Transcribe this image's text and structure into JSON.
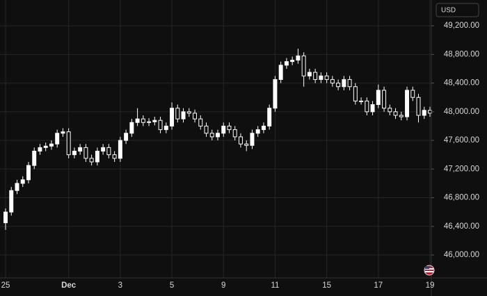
{
  "chart_data": {
    "type": "candlestick",
    "currency": "USD",
    "color": "#ffffff",
    "grid": true,
    "categories": [
      "25",
      null,
      null,
      null,
      null,
      null,
      null,
      null,
      null,
      null,
      null,
      "Dec",
      null,
      null,
      null,
      null,
      null,
      null,
      null,
      null,
      "3",
      null,
      null,
      null,
      null,
      null,
      null,
      null,
      null,
      "5",
      null,
      null,
      null,
      null,
      null,
      null,
      null,
      null,
      "9",
      null,
      null,
      null,
      null,
      null,
      null,
      null,
      null,
      "11",
      null,
      null,
      null,
      null,
      null,
      null,
      null,
      null,
      "15",
      null,
      null,
      null,
      null,
      null,
      null,
      null,
      null,
      "17",
      null,
      null,
      null,
      null,
      null,
      null,
      null,
      null,
      "19"
    ],
    "open": [
      46450,
      46600,
      46900,
      47000,
      47050,
      47250,
      47450,
      47500,
      47520,
      47550,
      47700,
      47720,
      47400,
      47450,
      47500,
      47350,
      47300,
      47450,
      47500,
      47400,
      47350,
      47600,
      47700,
      47850,
      47900,
      47850,
      47860,
      47880,
      47750,
      47800,
      48050,
      47900,
      48000,
      47980,
      47900,
      47800,
      47700,
      47650,
      47700,
      47800,
      47750,
      47650,
      47550,
      47530,
      47700,
      47750,
      47800,
      48050,
      48450,
      48650,
      48700,
      48720,
      48780,
      48500,
      48550,
      48450,
      48500,
      48450,
      48400,
      48350,
      48450,
      48350,
      48150,
      48150,
      48000,
      48100,
      48300,
      48050,
      48000,
      47950,
      47930,
      48300,
      48200,
      47950,
      48020
    ],
    "high": [
      46650,
      46950,
      47050,
      47100,
      47300,
      47500,
      47550,
      47570,
      47600,
      47750,
      47770,
      47770,
      47500,
      47550,
      47550,
      47400,
      47500,
      47550,
      47550,
      47450,
      47650,
      47750,
      47900,
      48050,
      47950,
      47910,
      47930,
      47930,
      47850,
      48130,
      48100,
      48050,
      48050,
      48030,
      47950,
      47850,
      47750,
      47750,
      47850,
      47850,
      47800,
      47700,
      47600,
      47750,
      47800,
      47850,
      48100,
      48500,
      48700,
      48750,
      48770,
      48880,
      48830,
      48600,
      48600,
      48550,
      48550,
      48500,
      48450,
      48500,
      48500,
      48400,
      48200,
      48200,
      48150,
      48380,
      48350,
      48100,
      48050,
      48000,
      48350,
      48350,
      48250,
      48070,
      48070
    ],
    "low": [
      46350,
      46550,
      46850,
      46950,
      47000,
      47200,
      47400,
      47450,
      47470,
      47500,
      47650,
      47350,
      47350,
      47400,
      47300,
      47250,
      47250,
      47400,
      47350,
      47300,
      47300,
      47550,
      47650,
      47800,
      47800,
      47800,
      47810,
      47700,
      47700,
      47750,
      47850,
      47850,
      47930,
      47850,
      47750,
      47650,
      47600,
      47600,
      47650,
      47700,
      47600,
      47500,
      47450,
      47480,
      47650,
      47700,
      47750,
      48000,
      48400,
      48600,
      48650,
      48670,
      48350,
      48450,
      48400,
      48400,
      48400,
      48350,
      48300,
      48300,
      48300,
      48100,
      48100,
      47950,
      47950,
      48050,
      48000,
      47950,
      47900,
      47880,
      47880,
      48150,
      47850,
      47900,
      47930
    ],
    "close": [
      46600,
      46900,
      47000,
      47050,
      47250,
      47450,
      47500,
      47520,
      47550,
      47700,
      47720,
      47400,
      47450,
      47500,
      47350,
      47300,
      47450,
      47500,
      47400,
      47350,
      47600,
      47700,
      47850,
      47900,
      47850,
      47860,
      47880,
      47750,
      47800,
      48050,
      47900,
      48000,
      47980,
      47900,
      47800,
      47700,
      47650,
      47700,
      47800,
      47750,
      47650,
      47550,
      47530,
      47700,
      47750,
      47800,
      48050,
      48450,
      48650,
      48700,
      48720,
      48780,
      48500,
      48550,
      48450,
      48500,
      48450,
      48400,
      48350,
      48450,
      48350,
      48150,
      48150,
      48000,
      48100,
      48300,
      48050,
      48000,
      47950,
      47930,
      48300,
      48200,
      47950,
      48020,
      47980
    ],
    "ylim": [
      45680,
      49560
    ],
    "yticks": [
      {
        "value": 46000,
        "label": "46,000.00"
      },
      {
        "value": 46400,
        "label": "46,400.00"
      },
      {
        "value": 46800,
        "label": "46,800.00"
      },
      {
        "value": 47200,
        "label": "47,200.00"
      },
      {
        "value": 47600,
        "label": "47,600.00"
      },
      {
        "value": 48000,
        "label": "48,000.00"
      },
      {
        "value": 48400,
        "label": "48,400.00"
      },
      {
        "value": 48800,
        "label": "48,800.00"
      },
      {
        "value": 49200,
        "label": "49,200.00"
      }
    ]
  }
}
